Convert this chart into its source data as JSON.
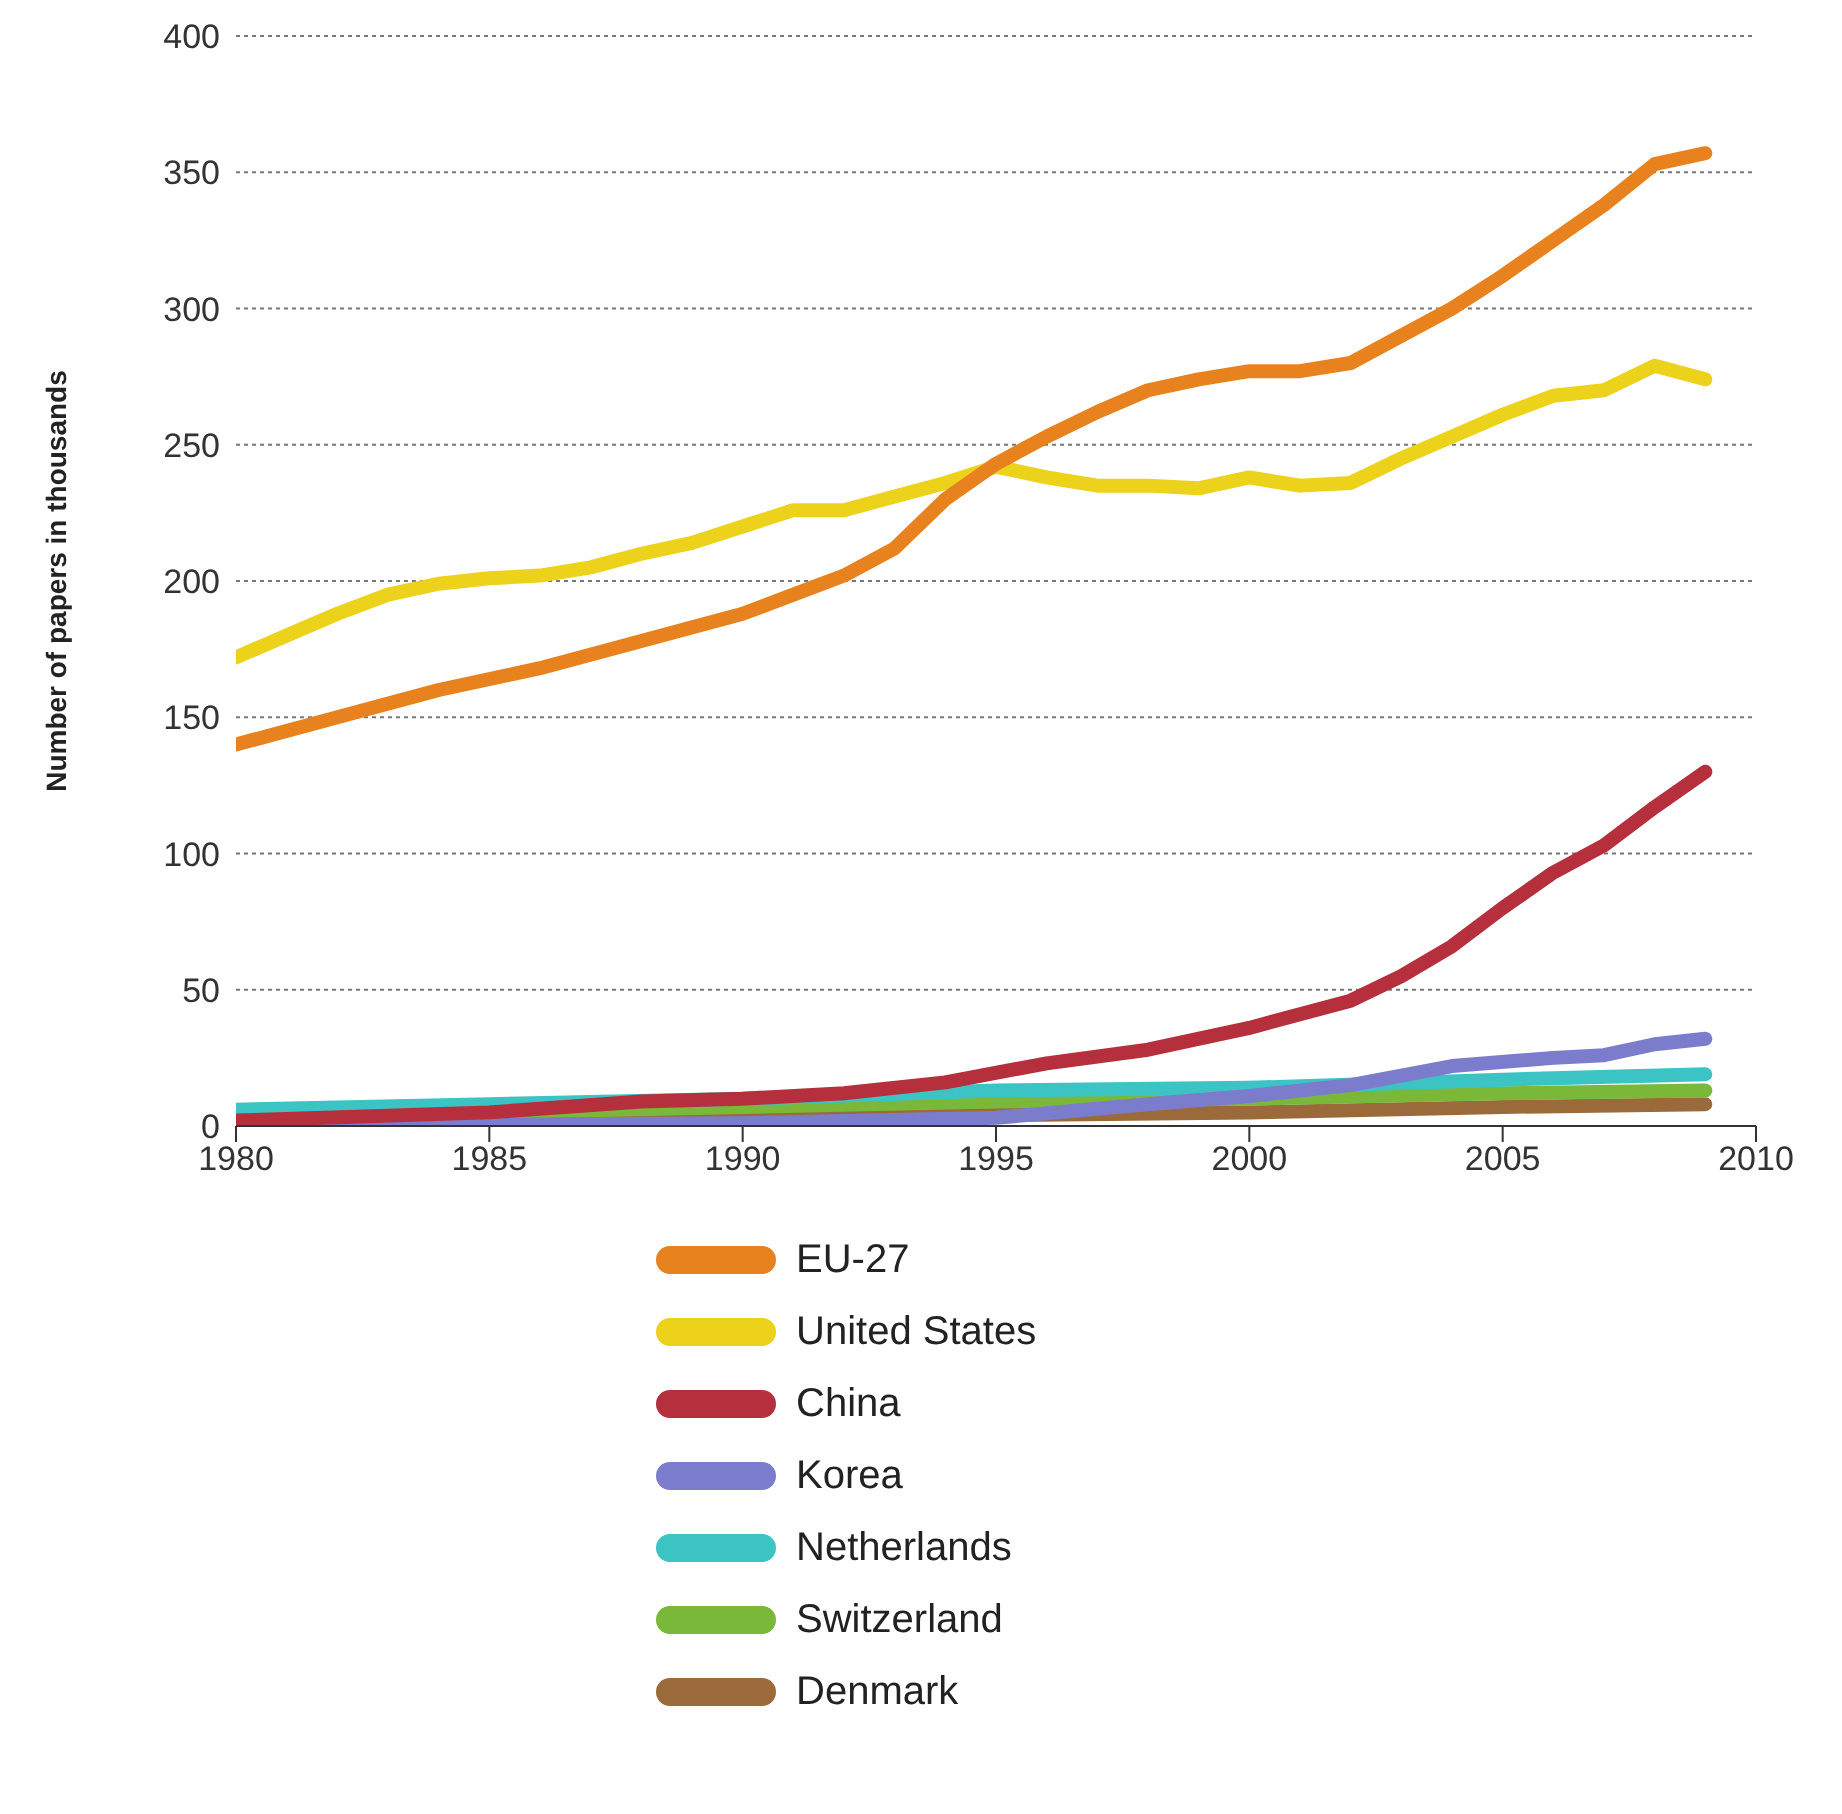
{
  "chart_data": {
    "type": "line",
    "ylabel": "Number of papers in thousands",
    "xlim": [
      1980,
      2010
    ],
    "xticks": [
      1980,
      1985,
      1990,
      1995,
      2000,
      2005,
      2010
    ],
    "ylim": [
      0,
      400
    ],
    "yticks": [
      0,
      50,
      100,
      150,
      200,
      250,
      300,
      350,
      400
    ],
    "grid": "y",
    "legend": "bottom",
    "marker": "none",
    "line_style": "solid",
    "series": [
      {
        "name": "EU-27",
        "color": "#e8821e",
        "x": [
          1980,
          1982,
          1984,
          1986,
          1988,
          1990,
          1991,
          1992,
          1993,
          1994,
          1995,
          1996,
          1997,
          1998,
          1999,
          2000,
          2001,
          2002,
          2003,
          2004,
          2005,
          2006,
          2007,
          2008,
          2009
        ],
        "values": [
          140,
          150,
          160,
          168,
          178,
          188,
          195,
          202,
          212,
          230,
          243,
          253,
          262,
          270,
          274,
          277,
          277,
          280,
          290,
          300,
          312,
          325,
          338,
          353,
          357
        ]
      },
      {
        "name": "United States",
        "color": "#ecd21a",
        "x": [
          1980,
          1981,
          1982,
          1983,
          1984,
          1985,
          1986,
          1987,
          1988,
          1989,
          1990,
          1991,
          1992,
          1993,
          1994,
          1995,
          1996,
          1997,
          1998,
          1999,
          2000,
          2001,
          2002,
          2003,
          2004,
          2005,
          2006,
          2007,
          2008,
          2009
        ],
        "values": [
          172,
          180,
          188,
          195,
          199,
          201,
          202,
          205,
          210,
          214,
          220,
          226,
          226,
          231,
          236,
          242,
          238,
          235,
          235,
          234,
          238,
          235,
          236,
          245,
          253,
          261,
          268,
          270,
          279,
          274
        ]
      },
      {
        "name": "China",
        "color": "#b5303c",
        "x": [
          1980,
          1985,
          1988,
          1990,
          1992,
          1994,
          1996,
          1998,
          2000,
          2002,
          2003,
          2004,
          2005,
          2006,
          2007,
          2008,
          2009
        ],
        "values": [
          2,
          5,
          9,
          10,
          12,
          16,
          23,
          28,
          36,
          46,
          55,
          66,
          80,
          93,
          103,
          117,
          130
        ]
      },
      {
        "name": "Korea",
        "color": "#7b7ccc",
        "x": [
          1980,
          1990,
          1995,
          1998,
          2000,
          2002,
          2004,
          2006,
          2007,
          2008,
          2009
        ],
        "values": [
          0,
          1,
          3,
          8,
          11,
          15,
          22,
          25,
          26,
          30,
          32
        ]
      },
      {
        "name": "Netherlands",
        "color": "#3cc4c4",
        "x": [
          1980,
          1985,
          1990,
          1995,
          2000,
          2005,
          2009
        ],
        "values": [
          6,
          8,
          10,
          13,
          14,
          17,
          19
        ]
      },
      {
        "name": "Switzerland",
        "color": "#7ab83a",
        "x": [
          1980,
          1990,
          1995,
          2000,
          2005,
          2009
        ],
        "values": [
          3,
          7,
          9,
          10,
          12,
          13
        ]
      },
      {
        "name": "Denmark",
        "color": "#9a6a3a",
        "x": [
          1980,
          1990,
          1995,
          2000,
          2005,
          2009
        ],
        "values": [
          1,
          3,
          4,
          5,
          7,
          8
        ]
      }
    ]
  }
}
